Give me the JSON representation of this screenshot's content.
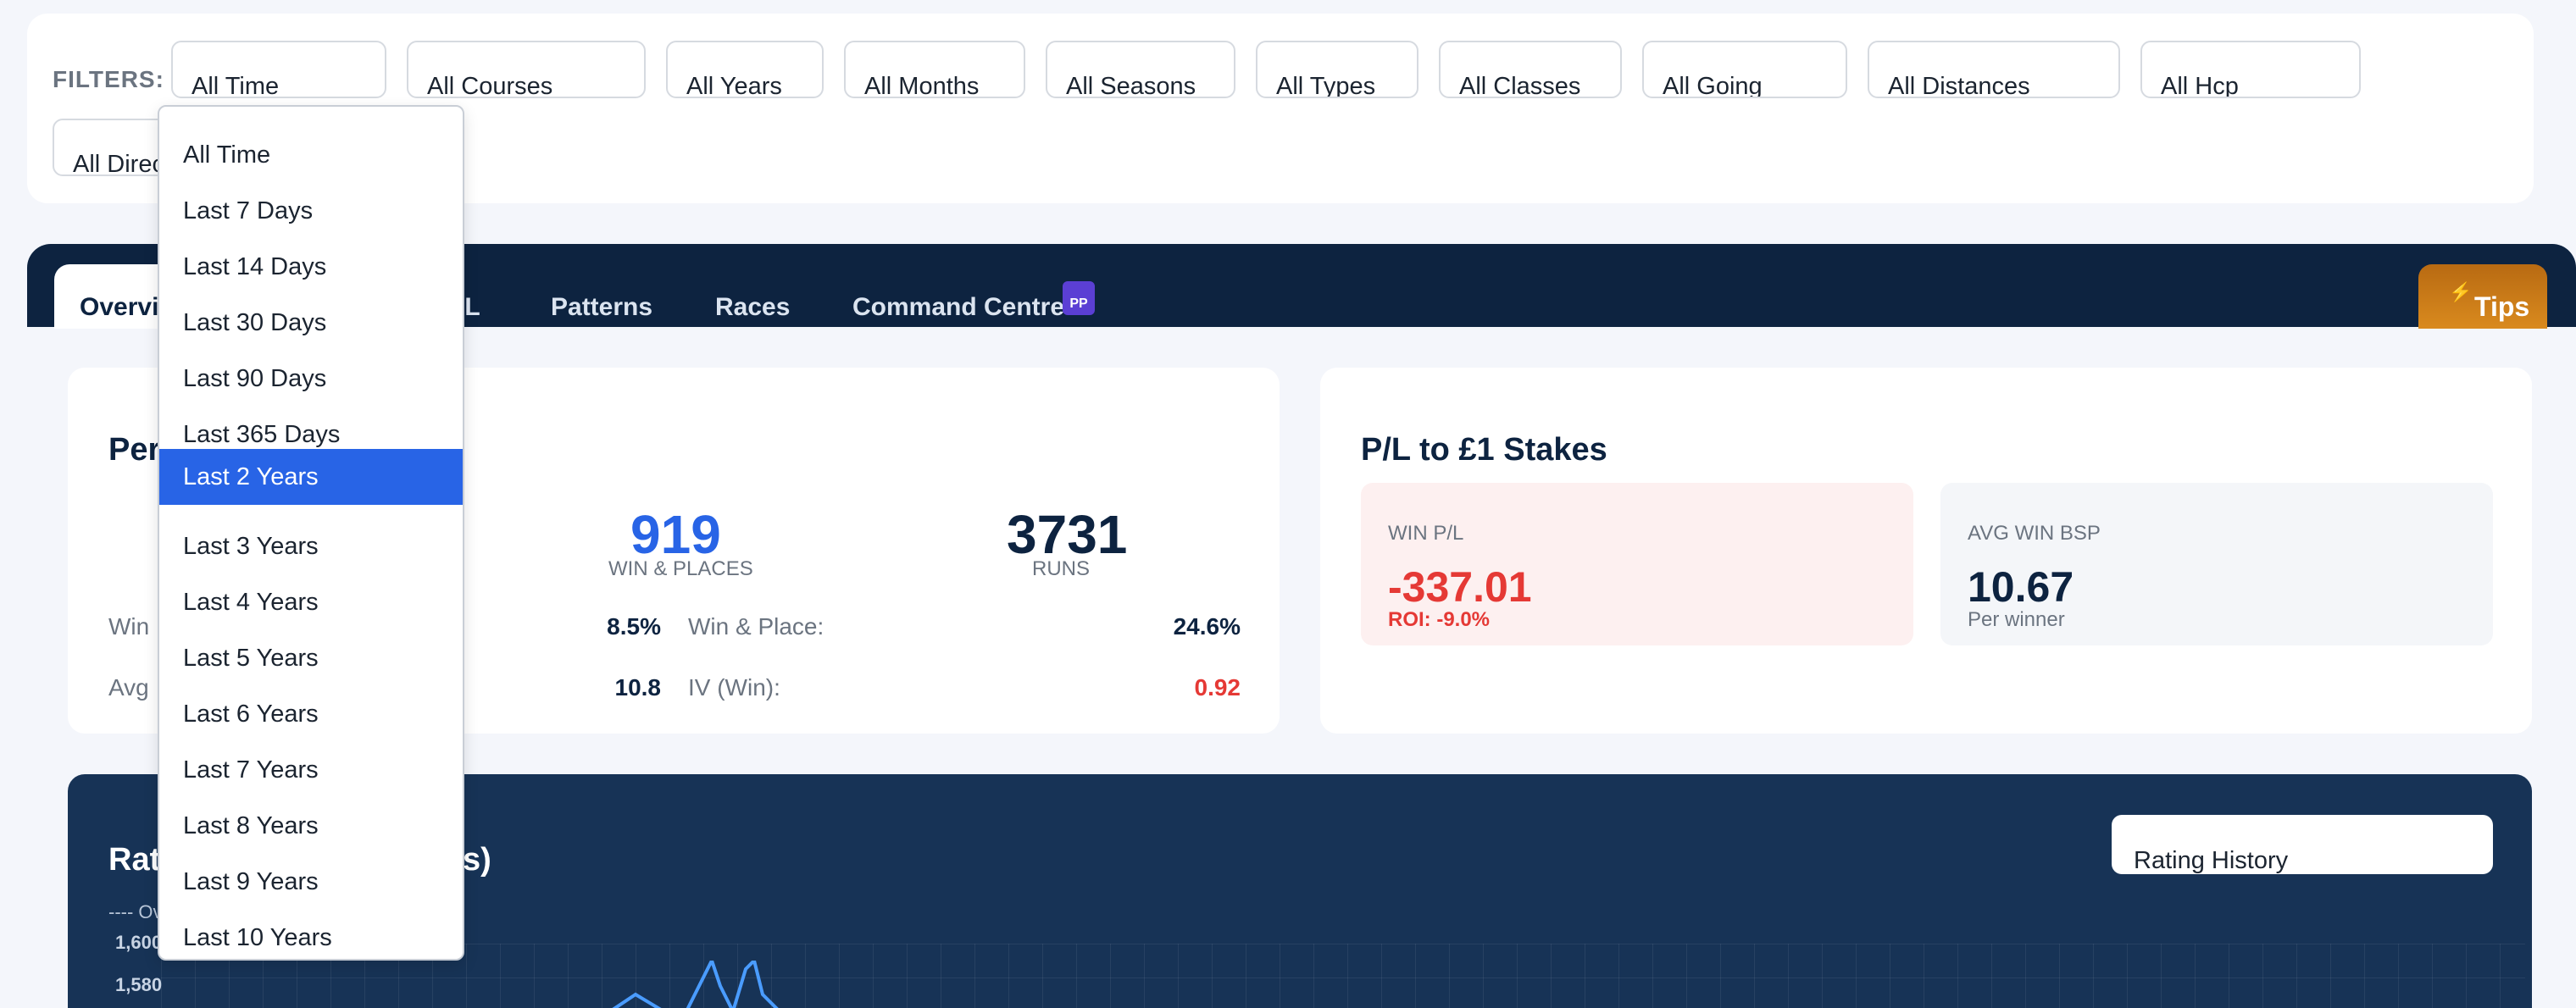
{
  "filters": {
    "label": "FILTERS:",
    "buttons": [
      "All Time",
      "All Courses",
      "All Years",
      "All Months",
      "All Seasons",
      "All Types",
      "All Classes",
      "All Going",
      "All Distances",
      "All Hcp",
      "All Directions"
    ]
  },
  "tabs": {
    "active": "Overview",
    "partial_tab": "P/L",
    "items": [
      "Patterns",
      "Races",
      "Command Centre"
    ],
    "badge": "PP",
    "tips": "Tips",
    "bolt": "⚡"
  },
  "performance": {
    "title_partial": "Per",
    "win_places_value": "919",
    "win_places_label": "WIN & PLACES",
    "runs_value": "3731",
    "runs_label": "RUNS",
    "row1_label_partial": "Win",
    "row1_value": "8.5%",
    "row1b_label": "Win & Place:",
    "row1b_value": "24.6%",
    "row2_label_partial": "Avg",
    "row2_value": "10.8",
    "row2b_label": "IV (Win):",
    "row2b_value": "0.92"
  },
  "pl": {
    "title": "P/L to £1 Stakes",
    "win_pl_label": "WIN P/L",
    "win_pl_value": "-337.01",
    "roi": "ROI: -9.0%",
    "avg_bsp_label": "AVG WIN BSP",
    "avg_bsp_value": "10.67",
    "avg_bsp_sub": "Per winner"
  },
  "chart": {
    "title_partial": "Rat",
    "title_end": "s)",
    "legend_partial": "---- Ov",
    "select_value": "Rating History",
    "yticks": [
      "1,600",
      "1,580"
    ]
  },
  "dropdown": {
    "items": [
      "All Time",
      "Last 7 Days",
      "Last 14 Days",
      "Last 30 Days",
      "Last 90 Days",
      "Last 365 Days",
      "Last 2 Years",
      "Last 3 Years",
      "Last 4 Years",
      "Last 5 Years",
      "Last 6 Years",
      "Last 7 Years",
      "Last 8 Years",
      "Last 9 Years",
      "Last 10 Years"
    ],
    "selected_index": 6
  },
  "colors": {
    "navy": "#0d2340",
    "accent_blue": "#2864e6",
    "negative_red": "#e53935",
    "badge_purple": "#5b3fd4",
    "tips_orange": "#d98a1e"
  }
}
